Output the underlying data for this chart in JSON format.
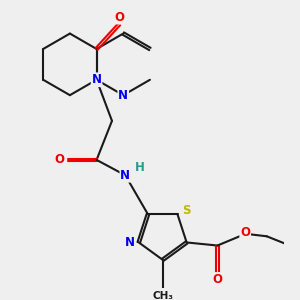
{
  "bg_color": "#efefef",
  "bond_color": "#1a1a1a",
  "bond_lw": 1.5,
  "dbl_off": 0.013,
  "N_color": "#0000ee",
  "O_color": "#ee0000",
  "S_color": "#bbbb00",
  "H_color": "#2a9a90",
  "C_color": "#1a1a1a",
  "fs": 8.5,
  "figsize": [
    3.0,
    3.0
  ],
  "dpi": 100,
  "xlim": [
    0.0,
    2.6
  ],
  "ylim": [
    0.0,
    2.8
  ]
}
